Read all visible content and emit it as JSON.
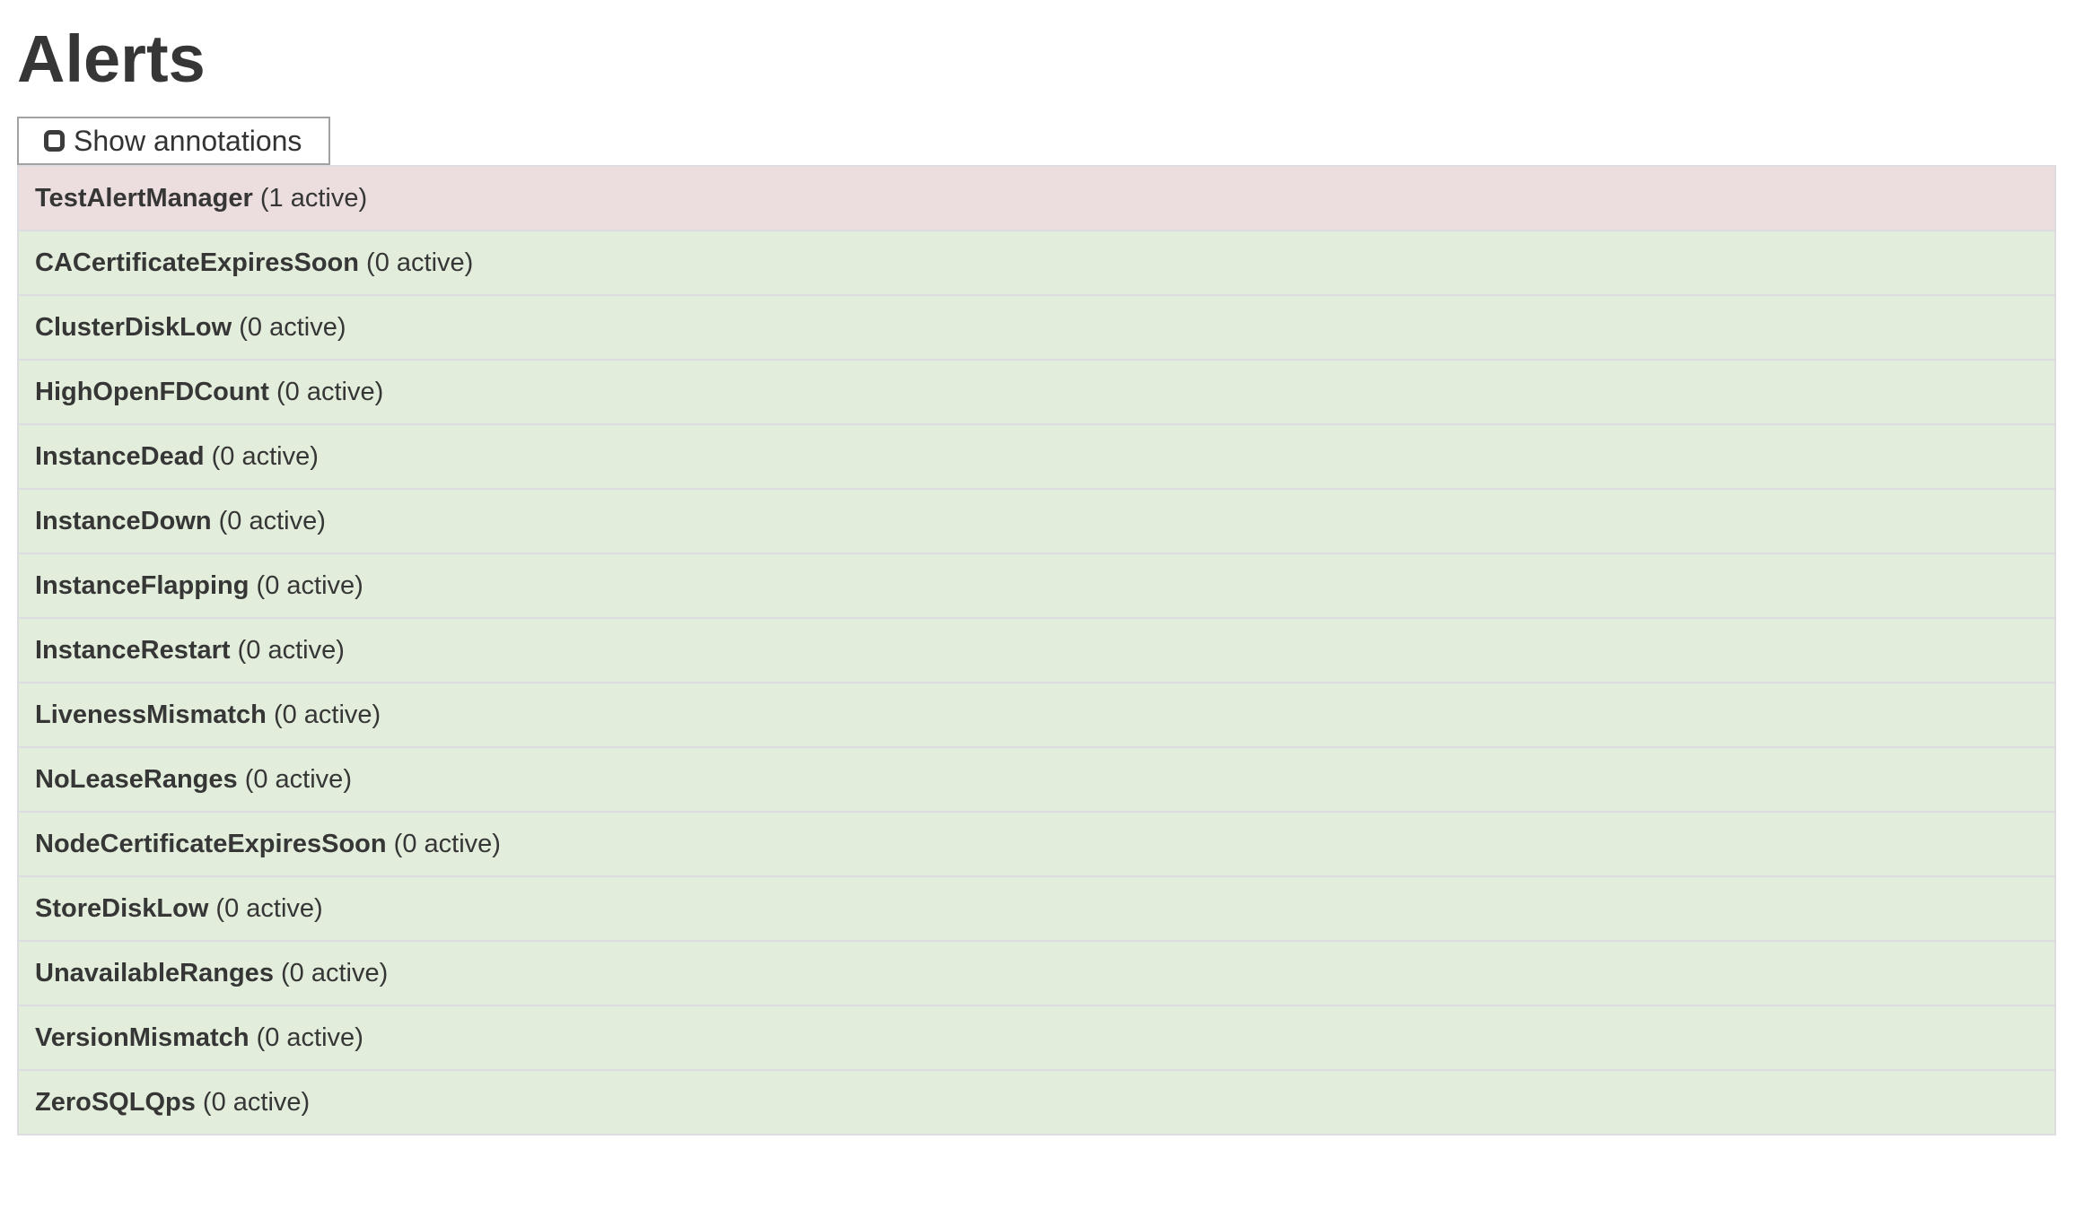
{
  "page": {
    "title": "Alerts"
  },
  "toolbar": {
    "show_annotations_label": "Show annotations",
    "checkbox_checked": false
  },
  "alerts": [
    {
      "name": "TestAlertManager",
      "active_count": 1,
      "count_label": "(1 active)",
      "state": "firing"
    },
    {
      "name": "CACertificateExpiresSoon",
      "active_count": 0,
      "count_label": "(0 active)",
      "state": "inactive"
    },
    {
      "name": "ClusterDiskLow",
      "active_count": 0,
      "count_label": "(0 active)",
      "state": "inactive"
    },
    {
      "name": "HighOpenFDCount",
      "active_count": 0,
      "count_label": "(0 active)",
      "state": "inactive"
    },
    {
      "name": "InstanceDead",
      "active_count": 0,
      "count_label": "(0 active)",
      "state": "inactive"
    },
    {
      "name": "InstanceDown",
      "active_count": 0,
      "count_label": "(0 active)",
      "state": "inactive"
    },
    {
      "name": "InstanceFlapping",
      "active_count": 0,
      "count_label": "(0 active)",
      "state": "inactive"
    },
    {
      "name": "InstanceRestart",
      "active_count": 0,
      "count_label": "(0 active)",
      "state": "inactive"
    },
    {
      "name": "LivenessMismatch",
      "active_count": 0,
      "count_label": "(0 active)",
      "state": "inactive"
    },
    {
      "name": "NoLeaseRanges",
      "active_count": 0,
      "count_label": "(0 active)",
      "state": "inactive"
    },
    {
      "name": "NodeCertificateExpiresSoon",
      "active_count": 0,
      "count_label": "(0 active)",
      "state": "inactive"
    },
    {
      "name": "StoreDiskLow",
      "active_count": 0,
      "count_label": "(0 active)",
      "state": "inactive"
    },
    {
      "name": "UnavailableRanges",
      "active_count": 0,
      "count_label": "(0 active)",
      "state": "inactive"
    },
    {
      "name": "VersionMismatch",
      "active_count": 0,
      "count_label": "(0 active)",
      "state": "inactive"
    },
    {
      "name": "ZeroSQLQps",
      "active_count": 0,
      "count_label": "(0 active)",
      "state": "inactive"
    }
  ],
  "colors": {
    "text": "#363636",
    "firing_bg": "#ecdede",
    "inactive_bg": "#e2eedb",
    "row_border": "#dcdce1",
    "button_border": "#a2a2a2",
    "checkbox_border": "#3c3c3c",
    "page_bg": "#ffffff"
  }
}
